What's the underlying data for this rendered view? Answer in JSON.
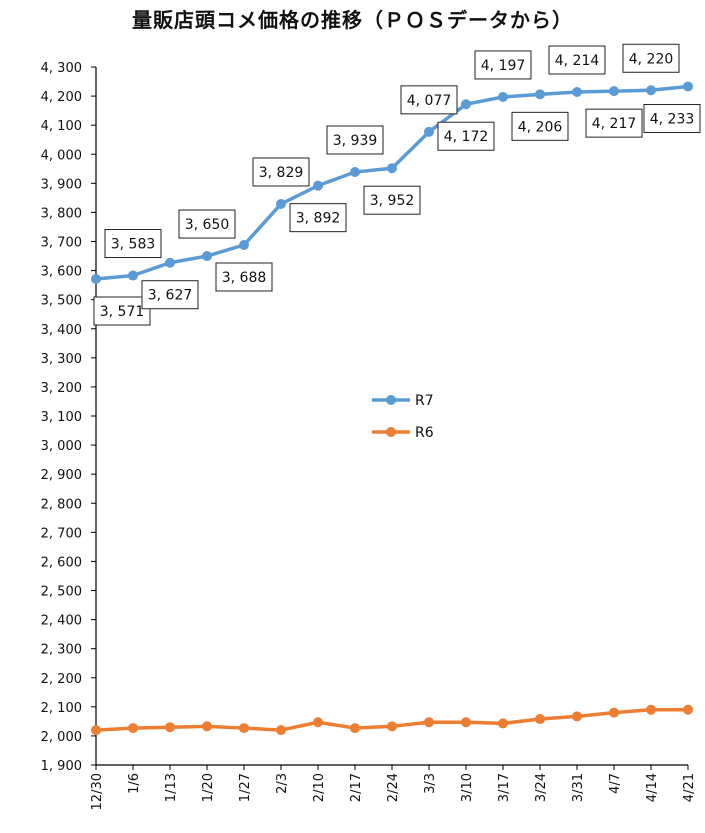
{
  "chart_data": {
    "type": "line",
    "title": "量販店頭コメ価格の推移（ＰＯＳデータから）",
    "categories": [
      "12/30",
      "1/6",
      "1/13",
      "1/20",
      "1/27",
      "2/3",
      "2/10",
      "2/17",
      "2/24",
      "3/3",
      "3/10",
      "3/17",
      "3/24",
      "3/31",
      "4/7",
      "4/14",
      "4/21"
    ],
    "ylim": [
      1900,
      4300
    ],
    "ystep": 100,
    "grid": false,
    "legend": "center",
    "series": [
      {
        "name": "R7",
        "color": "#5B9BD5",
        "values": [
          3571,
          3583,
          3627,
          3650,
          3688,
          3829,
          3892,
          3939,
          3952,
          4077,
          4172,
          4197,
          4206,
          4214,
          4217,
          4220,
          4233
        ],
        "labels": [
          "3, 571",
          "3, 583",
          "3, 627",
          "3, 650",
          "3, 688",
          "3, 829",
          "3, 892",
          "3, 939",
          "3, 952",
          "4, 077",
          "4, 172",
          "4, 197",
          "4, 206",
          "4, 214",
          "4, 217",
          "4, 220",
          "4, 233"
        ],
        "label_pos": [
          "below",
          "above",
          "below",
          "above",
          "below",
          "above",
          "below",
          "above",
          "below",
          "above",
          "below",
          "above",
          "below",
          "above",
          "below",
          "above",
          "below"
        ]
      },
      {
        "name": "R6",
        "color": "#ED7D31",
        "values": [
          2020,
          2027,
          2030,
          2033,
          2027,
          2020,
          2047,
          2027,
          2033,
          2047,
          2047,
          2043,
          2058,
          2067,
          2080,
          2090,
          2090
        ]
      }
    ],
    "ytick_labels": [
      "1, 900",
      "2, 000",
      "2, 100",
      "2, 200",
      "2, 300",
      "2, 400",
      "2, 500",
      "2, 600",
      "2, 700",
      "2, 800",
      "2, 900",
      "3, 000",
      "3, 100",
      "3, 200",
      "3, 300",
      "3, 400",
      "3, 500",
      "3, 600",
      "3, 700",
      "3, 800",
      "3, 900",
      "4, 000",
      "4, 100",
      "4, 200",
      "4, 300"
    ]
  }
}
